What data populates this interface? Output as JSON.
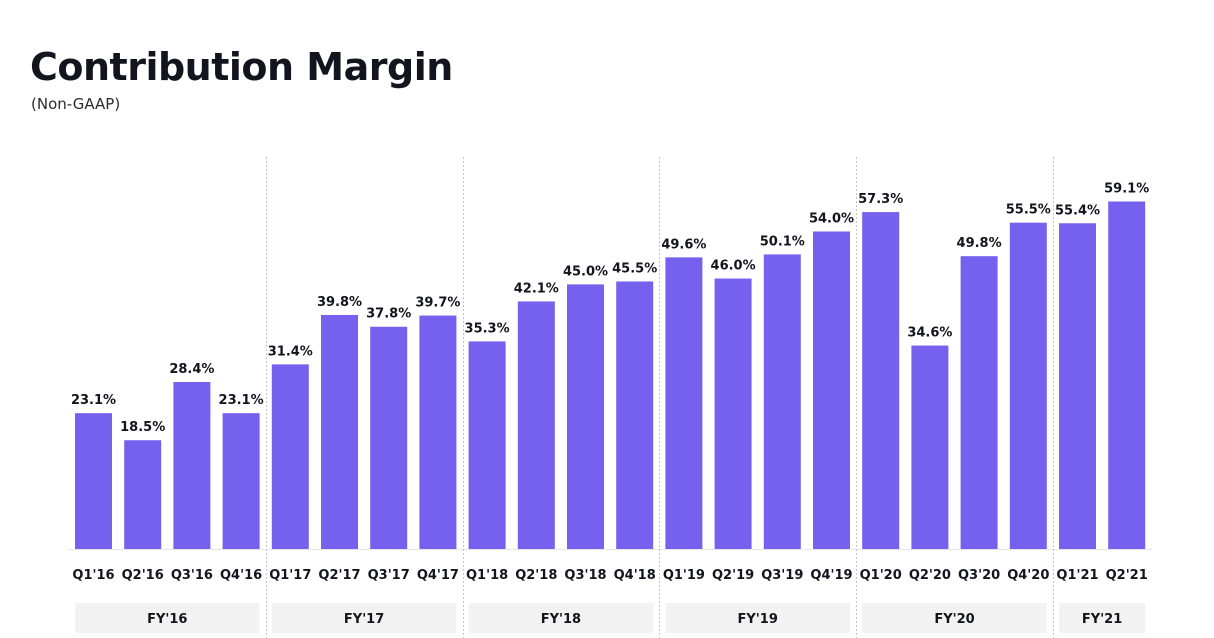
{
  "title": "Contribution Margin",
  "subtitle": "(Non-GAAP)",
  "colors": {
    "bar": "#7660EE",
    "label": "#14141e",
    "fy_band": "#f2f2f2",
    "divider": "#c4c4c4",
    "baseline": "#e6e6e6"
  },
  "chart_data": {
    "type": "bar",
    "title": "Contribution Margin",
    "subtitle": "(Non-GAAP)",
    "xlabel": "",
    "ylabel": "",
    "ylim": [
      0,
      60
    ],
    "grid": false,
    "value_suffix": "%",
    "categories": [
      "Q1'16",
      "Q2'16",
      "Q3'16",
      "Q4'16",
      "Q1'17",
      "Q2'17",
      "Q3'17",
      "Q4'17",
      "Q1'18",
      "Q2'18",
      "Q3'18",
      "Q4'18",
      "Q1'19",
      "Q2'19",
      "Q3'19",
      "Q4'19",
      "Q1'20",
      "Q2'20",
      "Q3'20",
      "Q4'20",
      "Q1'21",
      "Q2'21"
    ],
    "values": [
      23.1,
      18.5,
      28.4,
      23.1,
      31.4,
      39.8,
      37.8,
      39.7,
      35.3,
      42.1,
      45.0,
      45.5,
      49.6,
      46.0,
      50.1,
      54.0,
      57.3,
      34.6,
      49.8,
      55.5,
      55.4,
      59.1
    ],
    "value_labels": [
      "23.1%",
      "18.5%",
      "28.4%",
      "23.1%",
      "31.4%",
      "39.8%",
      "37.8%",
      "39.7%",
      "35.3%",
      "42.1%",
      "45.0%",
      "45.5%",
      "49.6%",
      "46.0%",
      "50.1%",
      "54.0%",
      "57.3%",
      "34.6%",
      "49.8%",
      "55.5%",
      "55.4%",
      "59.1%"
    ],
    "groups": [
      {
        "label": "FY'16",
        "count": 4
      },
      {
        "label": "FY'17",
        "count": 4
      },
      {
        "label": "FY'18",
        "count": 4
      },
      {
        "label": "FY'19",
        "count": 4
      },
      {
        "label": "FY'20",
        "count": 4
      },
      {
        "label": "FY'21",
        "count": 2
      }
    ]
  }
}
